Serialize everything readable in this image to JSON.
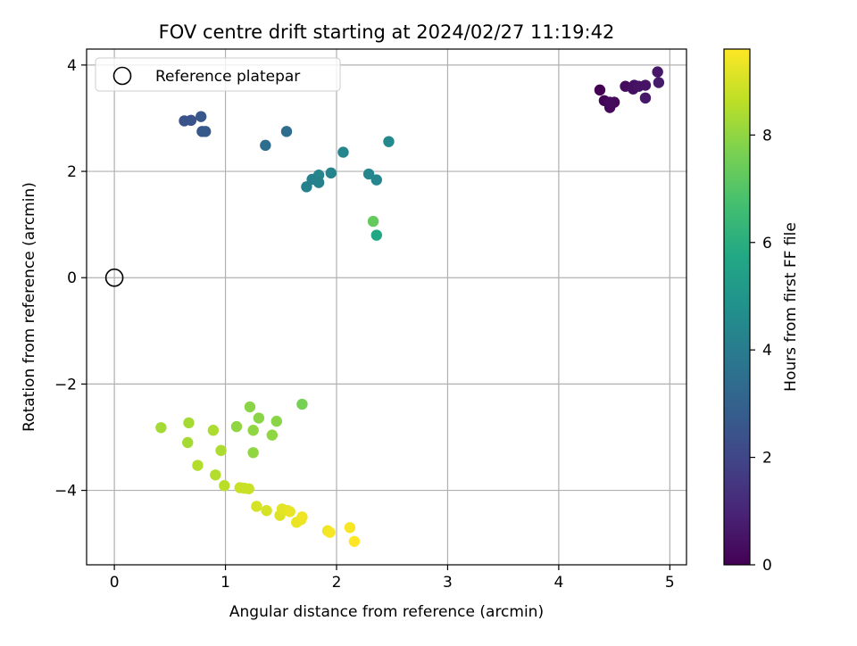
{
  "chart_data": {
    "type": "scatter",
    "title": "FOV centre drift starting at 2024/02/27 11:19:42",
    "xlabel": "Angular distance from reference (arcmin)",
    "ylabel": "Rotation from reference (arcmin)",
    "xlim": [
      -0.25,
      5.15
    ],
    "ylim": [
      -5.4,
      4.3
    ],
    "xticks": [
      0,
      1,
      2,
      3,
      4,
      5
    ],
    "xtick_labels": [
      "0",
      "1",
      "2",
      "3",
      "4",
      "5"
    ],
    "yticks": [
      -4,
      -2,
      0,
      2,
      4
    ],
    "ytick_labels": [
      "−4",
      "−2",
      "0",
      "2",
      "4"
    ],
    "grid": true,
    "legend": {
      "placement": "top-left",
      "entries": [
        "Reference platepar"
      ]
    },
    "reference": {
      "x": 0,
      "y": 0,
      "label": "Reference platepar"
    },
    "colorbar": {
      "label": "Hours from first FF file",
      "colormap": "viridis",
      "range": [
        0,
        9.6
      ],
      "ticks": [
        0,
        2,
        4,
        6,
        8
      ],
      "tick_labels": [
        "0",
        "2",
        "4",
        "6",
        "8"
      ]
    },
    "points": [
      {
        "x": 4.37,
        "y": 3.53,
        "t": 0.0
      },
      {
        "x": 4.41,
        "y": 3.33,
        "t": 0.1
      },
      {
        "x": 4.46,
        "y": 3.2,
        "t": 0.2
      },
      {
        "x": 4.5,
        "y": 3.3,
        "t": 0.2
      },
      {
        "x": 4.46,
        "y": 3.3,
        "t": 0.3
      },
      {
        "x": 4.6,
        "y": 3.6,
        "t": 0.3
      },
      {
        "x": 4.67,
        "y": 3.55,
        "t": 0.4
      },
      {
        "x": 4.68,
        "y": 3.62,
        "t": 0.4
      },
      {
        "x": 4.72,
        "y": 3.6,
        "t": 0.5
      },
      {
        "x": 4.78,
        "y": 3.62,
        "t": 0.5
      },
      {
        "x": 4.78,
        "y": 3.38,
        "t": 0.6
      },
      {
        "x": 4.89,
        "y": 3.87,
        "t": 0.6
      },
      {
        "x": 4.9,
        "y": 3.67,
        "t": 0.7
      },
      {
        "x": 0.63,
        "y": 2.95,
        "t": 2.5
      },
      {
        "x": 0.69,
        "y": 2.96,
        "t": 2.5
      },
      {
        "x": 0.78,
        "y": 3.03,
        "t": 2.6
      },
      {
        "x": 0.79,
        "y": 2.75,
        "t": 2.6
      },
      {
        "x": 0.82,
        "y": 2.75,
        "t": 2.7
      },
      {
        "x": 1.36,
        "y": 2.49,
        "t": 3.4
      },
      {
        "x": 1.55,
        "y": 2.75,
        "t": 3.4
      },
      {
        "x": 2.47,
        "y": 2.56,
        "t": 4.5
      },
      {
        "x": 2.06,
        "y": 2.36,
        "t": 4.4
      },
      {
        "x": 1.95,
        "y": 1.97,
        "t": 4.3
      },
      {
        "x": 1.84,
        "y": 1.93,
        "t": 4.3
      },
      {
        "x": 1.78,
        "y": 1.85,
        "t": 4.2
      },
      {
        "x": 1.84,
        "y": 1.79,
        "t": 4.2
      },
      {
        "x": 1.73,
        "y": 1.71,
        "t": 4.2
      },
      {
        "x": 2.29,
        "y": 1.95,
        "t": 4.4
      },
      {
        "x": 2.36,
        "y": 1.84,
        "t": 4.4
      },
      {
        "x": 2.36,
        "y": 0.8,
        "t": 5.7
      },
      {
        "x": 2.33,
        "y": 1.06,
        "t": 7.3
      },
      {
        "x": 1.69,
        "y": -2.38,
        "t": 7.6
      },
      {
        "x": 1.22,
        "y": -2.43,
        "t": 7.9
      },
      {
        "x": 1.3,
        "y": -2.64,
        "t": 7.9
      },
      {
        "x": 1.46,
        "y": -2.7,
        "t": 7.9
      },
      {
        "x": 1.1,
        "y": -2.8,
        "t": 8.0
      },
      {
        "x": 1.25,
        "y": -2.87,
        "t": 8.0
      },
      {
        "x": 1.42,
        "y": -2.96,
        "t": 8.0
      },
      {
        "x": 1.25,
        "y": -3.29,
        "t": 8.0
      },
      {
        "x": 0.42,
        "y": -2.82,
        "t": 8.3
      },
      {
        "x": 0.67,
        "y": -2.73,
        "t": 8.3
      },
      {
        "x": 0.66,
        "y": -3.1,
        "t": 8.3
      },
      {
        "x": 0.89,
        "y": -2.87,
        "t": 8.4
      },
      {
        "x": 0.96,
        "y": -3.25,
        "t": 8.4
      },
      {
        "x": 0.75,
        "y": -3.53,
        "t": 8.5
      },
      {
        "x": 0.91,
        "y": -3.71,
        "t": 8.5
      },
      {
        "x": 0.99,
        "y": -3.91,
        "t": 8.6
      },
      {
        "x": 1.13,
        "y": -3.95,
        "t": 8.8
      },
      {
        "x": 1.17,
        "y": -3.96,
        "t": 8.8
      },
      {
        "x": 1.21,
        "y": -3.97,
        "t": 8.8
      },
      {
        "x": 1.28,
        "y": -4.3,
        "t": 9.0
      },
      {
        "x": 1.37,
        "y": -4.38,
        "t": 9.0
      },
      {
        "x": 1.49,
        "y": -4.47,
        "t": 9.1
      },
      {
        "x": 1.51,
        "y": -4.35,
        "t": 9.2
      },
      {
        "x": 1.56,
        "y": -4.38,
        "t": 9.2
      },
      {
        "x": 1.58,
        "y": -4.4,
        "t": 9.3
      },
      {
        "x": 1.64,
        "y": -4.6,
        "t": 9.3
      },
      {
        "x": 1.68,
        "y": -4.55,
        "t": 9.3
      },
      {
        "x": 1.69,
        "y": -4.5,
        "t": 9.4
      },
      {
        "x": 1.92,
        "y": -4.76,
        "t": 9.4
      },
      {
        "x": 1.94,
        "y": -4.79,
        "t": 9.5
      },
      {
        "x": 2.12,
        "y": -4.7,
        "t": 9.5
      },
      {
        "x": 2.16,
        "y": -4.96,
        "t": 9.6
      }
    ]
  }
}
